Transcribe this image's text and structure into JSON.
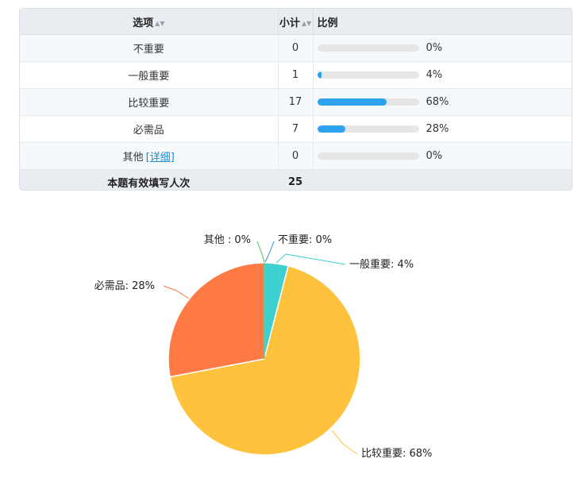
{
  "table": {
    "headers": {
      "option": "选项",
      "subtotal": "小计",
      "ratio": "比例",
      "sort_icon": "sort-icon"
    },
    "rows": [
      {
        "option": "不重要",
        "count": "0",
        "percent": "0%",
        "fraction": 0
      },
      {
        "option": "一般重要",
        "count": "1",
        "percent": "4%",
        "fraction": 0.04
      },
      {
        "option": "比较重要",
        "count": "17",
        "percent": "68%",
        "fraction": 0.68
      },
      {
        "option": "必需品",
        "count": "7",
        "percent": "28%",
        "fraction": 0.28
      },
      {
        "option": "其他",
        "detail_link": "[详细]",
        "count": "0",
        "percent": "0%",
        "fraction": 0
      }
    ],
    "total": {
      "label": "本题有效填写人次",
      "count": "25"
    },
    "bar_color": "#2fa2ef"
  },
  "chart_data": {
    "type": "pie",
    "slices": [
      {
        "name": "不重要",
        "value": 0,
        "label": "不重要: 0%",
        "color": "#3a8fd8"
      },
      {
        "name": "一般重要",
        "value": 1,
        "label": "一般重要: 4%",
        "color": "#3ecfcf"
      },
      {
        "name": "比较重要",
        "value": 17,
        "label": "比较重要: 68%",
        "color": "#ffc23d"
      },
      {
        "name": "必需品",
        "value": 7,
        "label": "必需品: 28%",
        "color": "#ff7a45"
      },
      {
        "name": "其他",
        "value": 0,
        "label": "其他 : 0%",
        "color": "#4cbb5a"
      }
    ],
    "start_angle": "top, clockwise"
  }
}
